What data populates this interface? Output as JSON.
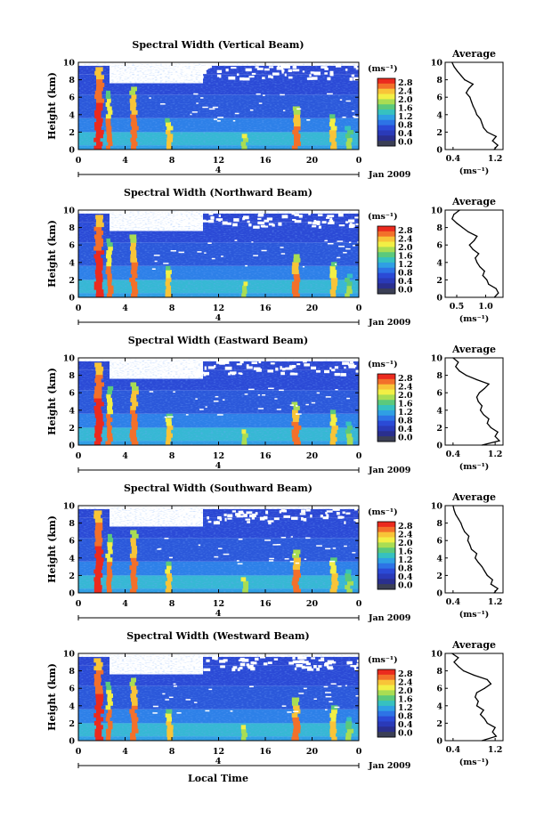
{
  "colorbar": {
    "unit": "(ms⁻¹)",
    "ticks": [
      "2.8",
      "2.4",
      "2.0",
      "1.6",
      "1.2",
      "0.8",
      "0.4",
      "0.0"
    ],
    "colors": [
      "#eb2a1e",
      "#f3702a",
      "#f8c438",
      "#f2ef45",
      "#a9dd53",
      "#5bc97c",
      "#36c1c0",
      "#2f9fe4",
      "#2d73e6",
      "#2b4ad6",
      "#2a3ab8",
      "#2a2f8e",
      "#3b3f55"
    ]
  },
  "xaxis": {
    "ticks": [
      "0",
      "4",
      "8",
      "12",
      "16",
      "20",
      "0"
    ],
    "date": "Jan 2009",
    "day_label": "4",
    "label": "Local Time"
  },
  "yaxis": {
    "label": "Height (km)",
    "ticks": [
      "0",
      "2",
      "4",
      "6",
      "8",
      "10"
    ]
  },
  "avg_unit": "(ms⁻¹)",
  "panels": [
    {
      "title": "Spectral Width (Vertical Beam)",
      "avg_title": "Average",
      "avg_xticks": [
        {
          "v": 0.4,
          "t": "0.4"
        },
        {
          "v": 1.2,
          "t": "1.2"
        }
      ],
      "chart_data": {
        "type": "line",
        "x_label": "(ms⁻¹)",
        "xlim": [
          0.25,
          1.35
        ],
        "ylim": [
          0,
          10
        ],
        "y": [
          0,
          0.5,
          1,
          1.5,
          2,
          2.5,
          3,
          3.5,
          4,
          4.5,
          5,
          5.5,
          6,
          6.5,
          7,
          7.5,
          8,
          8.5,
          9,
          9.5,
          10
        ],
        "x": [
          1.18,
          1.25,
          1.15,
          1.22,
          1.05,
          0.98,
          0.95,
          0.92,
          0.85,
          0.82,
          0.78,
          0.75,
          0.72,
          0.65,
          0.7,
          0.78,
          0.62,
          0.55,
          0.48,
          0.42,
          0.38
        ]
      }
    },
    {
      "title": "Spectral Width (Northward Beam)",
      "avg_title": "Average",
      "avg_xticks": [
        {
          "v": 0.5,
          "t": "0.5"
        },
        {
          "v": 1.0,
          "t": "1.0"
        }
      ],
      "chart_data": {
        "type": "line",
        "x_label": "(ms⁻¹)",
        "xlim": [
          0.3,
          1.3
        ],
        "ylim": [
          0,
          10
        ],
        "y": [
          0,
          0.5,
          1,
          1.5,
          2,
          2.5,
          3,
          3.5,
          4,
          4.5,
          5,
          5.5,
          6,
          6.5,
          7,
          7.5,
          8,
          8.5,
          9,
          9.5,
          10
        ],
        "x": [
          1.15,
          1.22,
          1.18,
          1.05,
          1.02,
          0.95,
          0.98,
          0.9,
          0.85,
          0.82,
          0.88,
          0.78,
          0.72,
          0.8,
          0.85,
          0.7,
          0.6,
          0.5,
          0.42,
          0.45,
          0.55
        ]
      }
    },
    {
      "title": "Spectral Width (Eastward Beam)",
      "avg_title": "Average",
      "avg_xticks": [
        {
          "v": 0.4,
          "t": "0.4"
        },
        {
          "v": 1.2,
          "t": "1.2"
        }
      ],
      "chart_data": {
        "type": "line",
        "x_label": "(ms⁻¹)",
        "xlim": [
          0.25,
          1.35
        ],
        "ylim": [
          0,
          10
        ],
        "y": [
          0,
          0.5,
          1,
          1.5,
          2,
          2.5,
          3,
          3.5,
          4,
          4.5,
          5,
          5.5,
          6,
          6.5,
          7,
          7.5,
          8,
          8.5,
          9,
          9.5,
          10
        ],
        "x": [
          0.95,
          1.28,
          1.2,
          1.25,
          1.12,
          1.05,
          1.08,
          0.98,
          0.92,
          0.95,
          0.88,
          0.85,
          0.9,
          1.0,
          1.08,
          0.85,
          0.65,
          0.52,
          0.45,
          0.5,
          0.4
        ]
      }
    },
    {
      "title": "Spectral Width (Southward Beam)",
      "avg_title": "Average",
      "avg_xticks": [
        {
          "v": 0.4,
          "t": "0.4"
        },
        {
          "v": 1.2,
          "t": "1.2"
        }
      ],
      "chart_data": {
        "type": "line",
        "x_label": "(ms⁻¹)",
        "xlim": [
          0.25,
          1.35
        ],
        "ylim": [
          0,
          10
        ],
        "y": [
          0,
          0.5,
          1,
          1.5,
          2,
          2.5,
          3,
          3.5,
          4,
          4.5,
          5,
          5.5,
          6,
          6.5,
          7,
          7.5,
          8,
          8.5,
          9,
          9.5,
          10
        ],
        "x": [
          1.18,
          1.25,
          1.12,
          1.15,
          1.05,
          1.0,
          0.95,
          0.88,
          0.82,
          0.85,
          0.75,
          0.72,
          0.68,
          0.7,
          0.62,
          0.58,
          0.55,
          0.5,
          0.45,
          0.42,
          0.4
        ]
      }
    },
    {
      "title": "Spectral Width (Westward Beam)",
      "avg_title": "Average",
      "avg_xticks": [
        {
          "v": 0.4,
          "t": "0.4"
        },
        {
          "v": 1.2,
          "t": "1.2"
        }
      ],
      "chart_data": {
        "type": "line",
        "x_label": "(ms⁻¹)",
        "xlim": [
          0.25,
          1.35
        ],
        "ylim": [
          0,
          10
        ],
        "y": [
          0,
          0.5,
          1,
          1.5,
          2,
          2.5,
          3,
          3.5,
          4,
          4.5,
          5,
          5.5,
          6,
          6.5,
          7,
          7.5,
          8,
          8.5,
          9,
          9.5,
          10
        ],
        "x": [
          0.95,
          1.22,
          1.15,
          1.2,
          1.05,
          1.0,
          0.92,
          0.98,
          0.85,
          0.88,
          0.82,
          0.85,
          1.0,
          1.12,
          1.05,
          0.8,
          0.6,
          0.5,
          0.42,
          0.5,
          0.38
        ]
      }
    }
  ]
}
